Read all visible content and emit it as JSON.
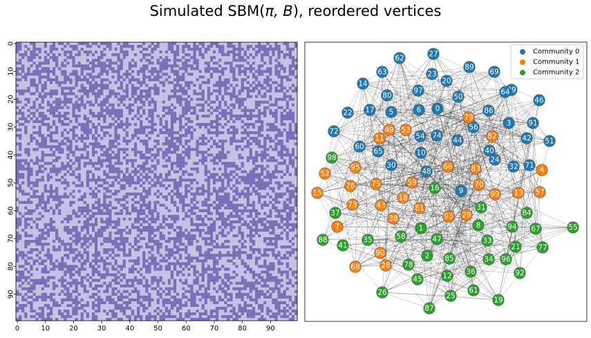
{
  "figure": {
    "title_prefix": "Simulated SBM(",
    "title_math": "π, B",
    "title_suffix": "), reordered vertices"
  },
  "colors": {
    "matrix_on": "#7a70b8",
    "matrix_off": "#c5c3e3",
    "community_0": "#1f77b4",
    "community_1": "#ff7f0e",
    "community_2": "#2ca02c",
    "edge": "#000000"
  },
  "matrix": {
    "n": 100,
    "x_ticks": [
      "0",
      "10",
      "20",
      "30",
      "40",
      "50",
      "60",
      "70",
      "80",
      "90"
    ],
    "y_ticks": [
      "0",
      "10",
      "20",
      "30",
      "40",
      "50",
      "60",
      "70",
      "80",
      "90"
    ],
    "style": "binary adjacency matrix, dense random on/off pattern"
  },
  "legend": {
    "position": "upper-right",
    "items": [
      {
        "label": "Community 0",
        "color_key": "community_0"
      },
      {
        "label": "Community 1",
        "color_key": "community_1"
      },
      {
        "label": "Community 2",
        "color_key": "community_2"
      }
    ]
  },
  "graph": {
    "communities": {
      "0": [
        "0",
        "3",
        "5",
        "6",
        "9",
        "10",
        "14",
        "17",
        "20",
        "22",
        "23",
        "24",
        "27",
        "30",
        "32",
        "39",
        "40",
        "42",
        "44",
        "46",
        "48",
        "50",
        "51",
        "54",
        "56",
        "60",
        "62",
        "63",
        "64",
        "65",
        "69",
        "71",
        "72",
        "74",
        "80",
        "86",
        "89",
        "91",
        "97"
      ],
      "1": [
        "4",
        "7",
        "11",
        "13",
        "15",
        "18",
        "28",
        "29",
        "38",
        "43",
        "49",
        "52",
        "53",
        "57",
        "59",
        "66",
        "68",
        "70",
        "73",
        "75",
        "76",
        "79",
        "81",
        "82",
        "83",
        "90",
        "93",
        "95",
        "99"
      ],
      "2": [
        "1",
        "2",
        "8",
        "12",
        "16",
        "19",
        "21",
        "25",
        "26",
        "31",
        "33",
        "34",
        "35",
        "36",
        "37",
        "41",
        "45",
        "47",
        "55",
        "58",
        "61",
        "67",
        "77",
        "78",
        "84",
        "85",
        "87",
        "88",
        "92",
        "94",
        "96",
        "98"
      ]
    }
  }
}
